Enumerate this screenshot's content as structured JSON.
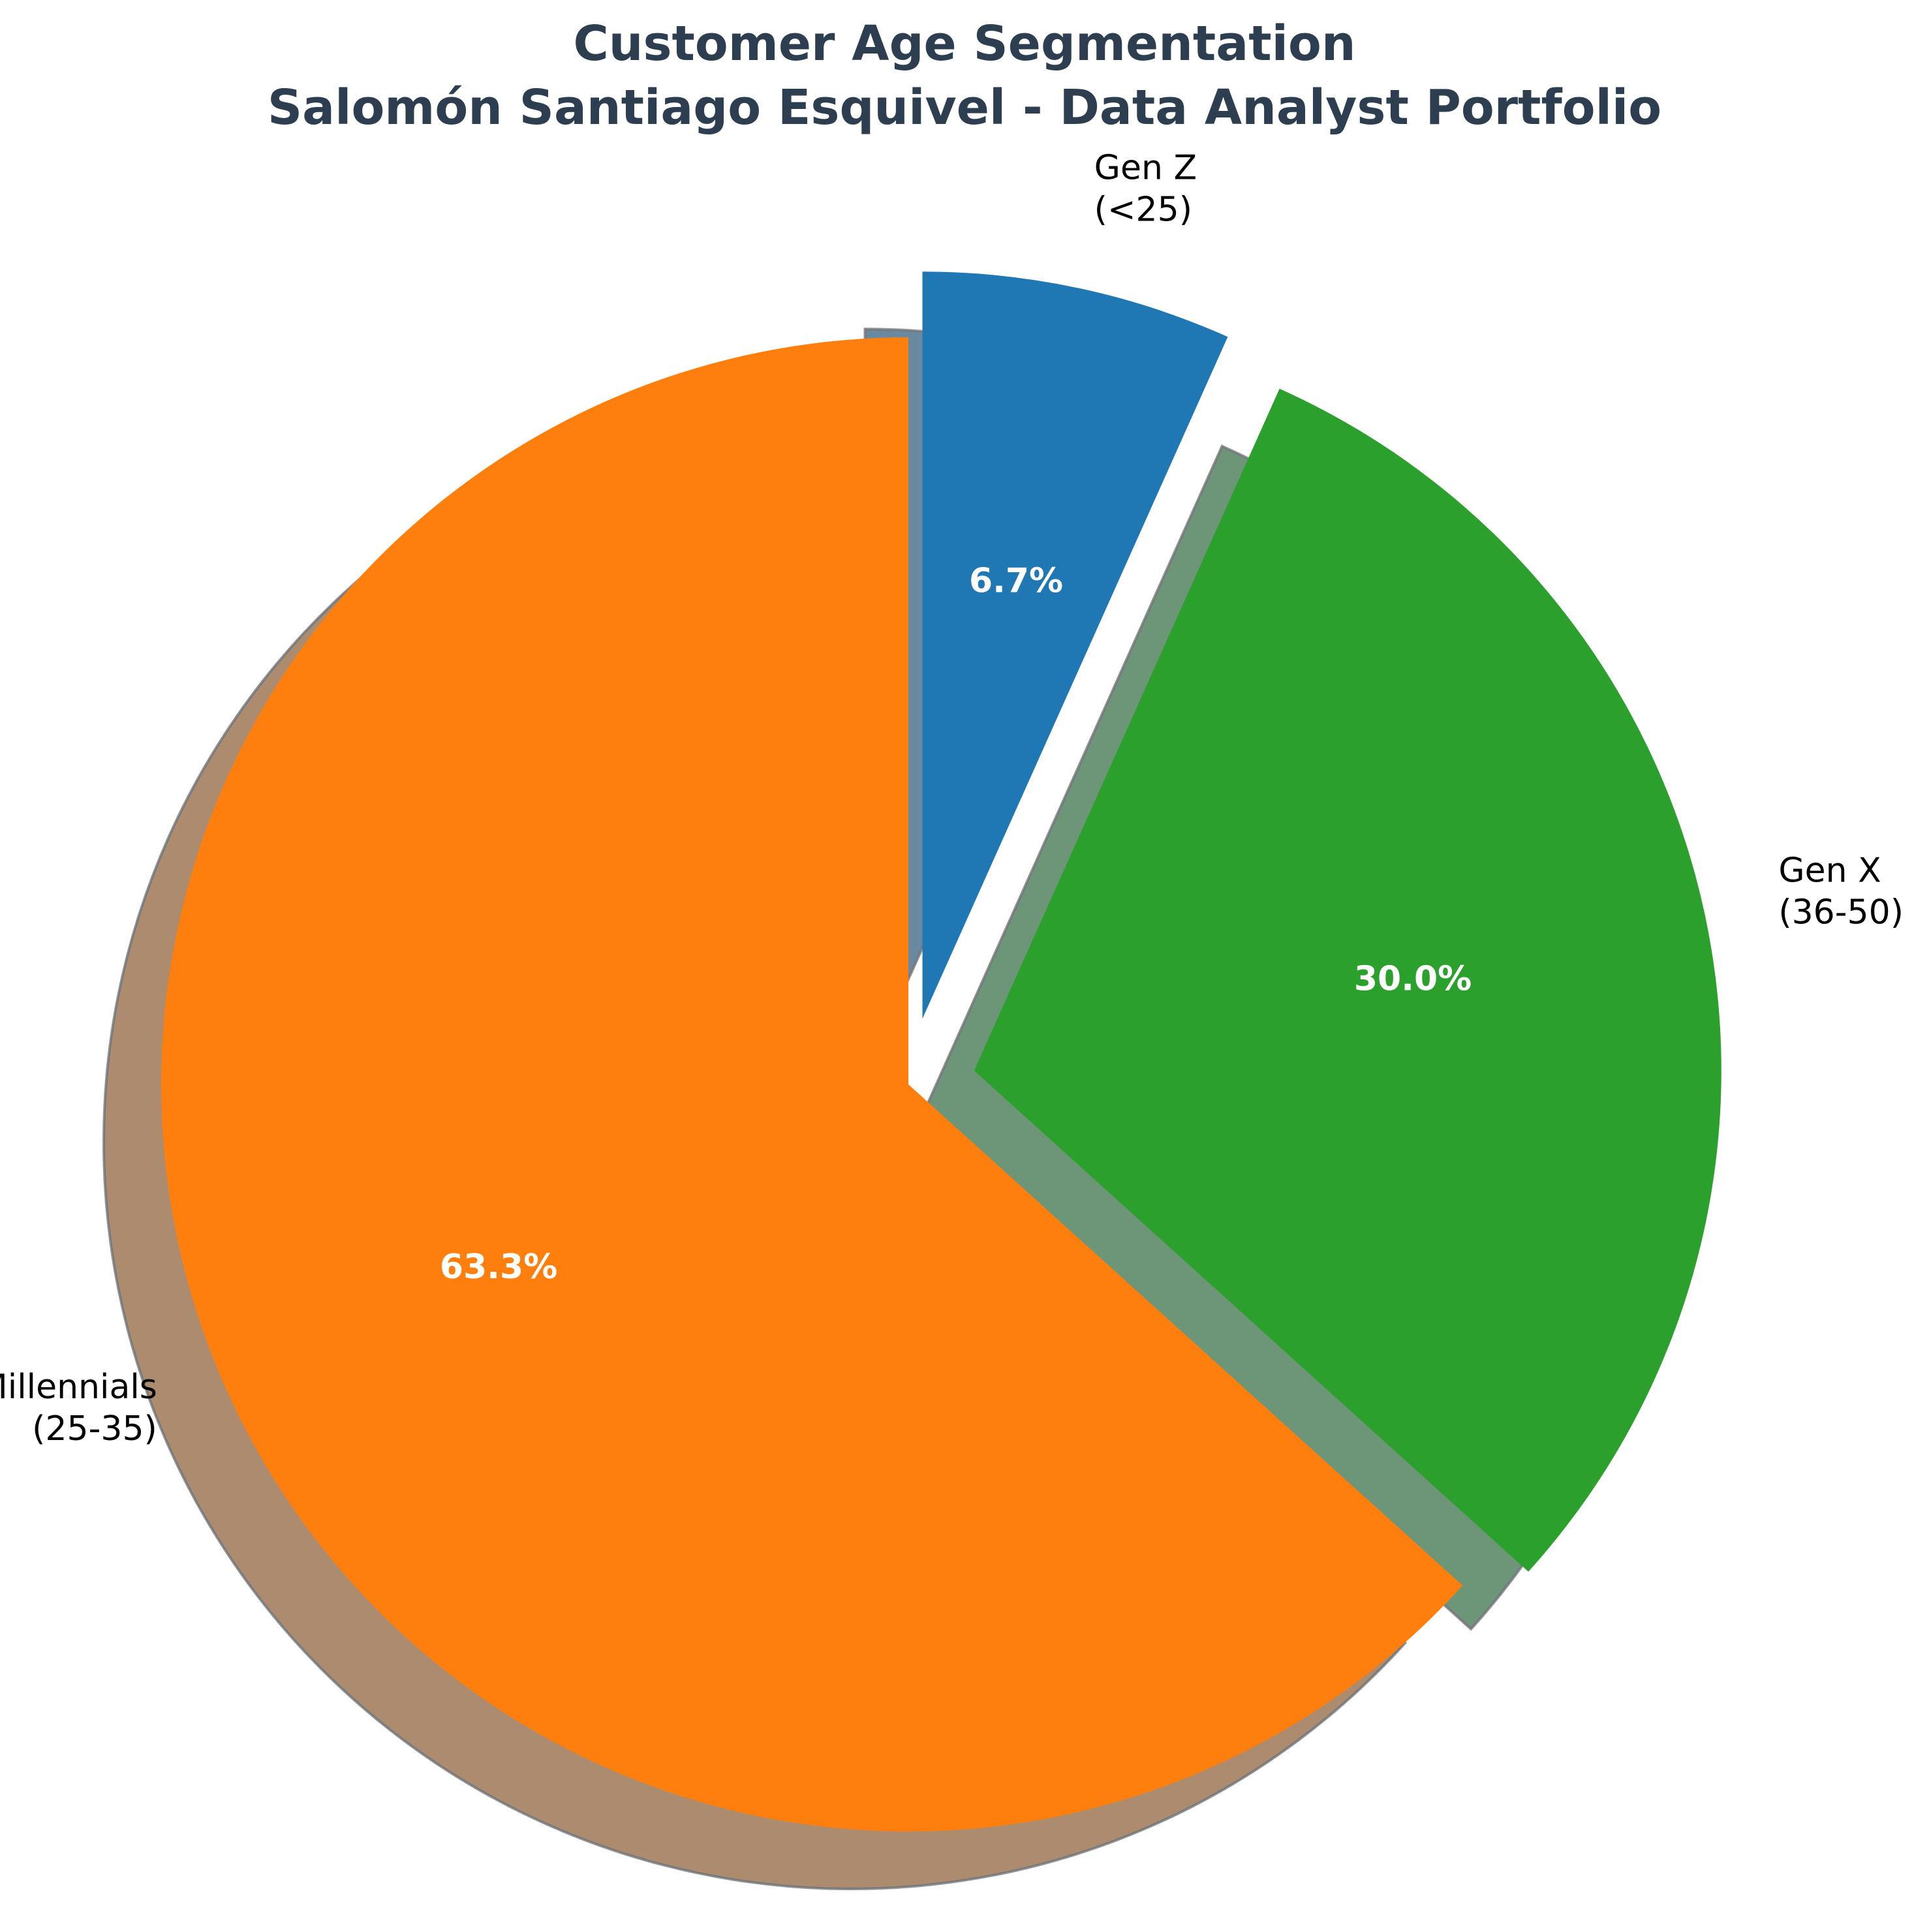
{
  "chart_data": {
    "type": "pie",
    "title": "Customer Age Segmentation",
    "subtitle": "Salomón Santiago Esquivel - Data Analyst Portfolio",
    "start_angle_deg": 90,
    "direction": "clockwise",
    "shadow": true,
    "slices": [
      {
        "label_line1": "Gen Z",
        "label_line2": "(<25)",
        "value": 6.7,
        "pct_label": "6.7%",
        "color": "#1f77b4",
        "exploded": true
      },
      {
        "label_line1": "Gen X",
        "label_line2": "(36-50)",
        "value": 30.0,
        "pct_label": "30.0%",
        "color": "#2ca02c",
        "exploded": true
      },
      {
        "label_line1": "Millennials",
        "label_line2": "(25-35)",
        "value": 63.3,
        "pct_label": "63.3%",
        "color": "#ff7f0e",
        "exploded": false
      }
    ]
  }
}
